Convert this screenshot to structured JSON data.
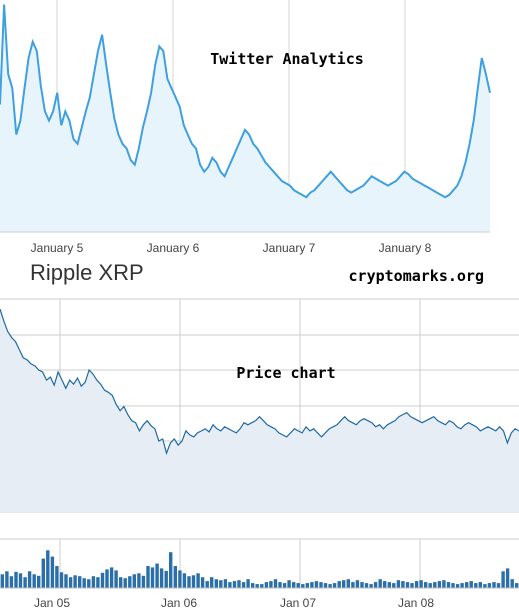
{
  "colors": {
    "twitter_line": "#3ea0e0",
    "twitter_fill": "#e8f4fc",
    "price_line": "#1f6aa5",
    "price_fill": "#e6edf4",
    "volume_bar": "#2a6fa8",
    "grid": "#cccccc",
    "text": "#333333"
  },
  "header": {
    "title": "Ripple XRP",
    "site": "cryptomarks.org"
  },
  "chart_data": [
    {
      "type": "area",
      "title": "Twitter Analytics",
      "x_tick_labels": [
        "January 5",
        "January 6",
        "January 7",
        "January 8"
      ],
      "series": [
        {
          "values": [
            55,
            98,
            68,
            62,
            42,
            48,
            62,
            75,
            82,
            78,
            63,
            52,
            48,
            52,
            60,
            46,
            52,
            48,
            40,
            38,
            45,
            52,
            58,
            68,
            78,
            85,
            72,
            60,
            49,
            42,
            38,
            36,
            31,
            29,
            36,
            45,
            52,
            60,
            72,
            80,
            78,
            66,
            62,
            58,
            54,
            46,
            42,
            38,
            36,
            29,
            26,
            28,
            32,
            30,
            26,
            24,
            28,
            32,
            36,
            40,
            44,
            42,
            38,
            36,
            33,
            30,
            28,
            26,
            24,
            22,
            21,
            20,
            18,
            17,
            16,
            15,
            17,
            18,
            20,
            22,
            24,
            26,
            24,
            22,
            20,
            18,
            17,
            18,
            19,
            20,
            22,
            24,
            23,
            22,
            21,
            20,
            21,
            22,
            24,
            26,
            25,
            23,
            22,
            21,
            20,
            19,
            18,
            17,
            16,
            15,
            16,
            18,
            20,
            24,
            30,
            38,
            48,
            62,
            75,
            68,
            60
          ]
        }
      ]
    },
    {
      "type": "line",
      "title": "Price chart",
      "x_tick_labels": [
        "Jan 05",
        "Jan 06",
        "Jan 07",
        "Jan 08"
      ],
      "series": [
        {
          "values": [
            2.4,
            2.28,
            2.18,
            2.12,
            2.08,
            2.0,
            1.92,
            1.9,
            1.86,
            1.84,
            1.8,
            1.78,
            1.7,
            1.73,
            1.65,
            1.78,
            1.7,
            1.62,
            1.7,
            1.66,
            1.72,
            1.64,
            1.68,
            1.8,
            1.76,
            1.7,
            1.66,
            1.6,
            1.58,
            1.55,
            1.46,
            1.4,
            1.44,
            1.36,
            1.3,
            1.28,
            1.2,
            1.26,
            1.3,
            1.25,
            1.22,
            1.1,
            1.12,
            0.98,
            1.08,
            1.12,
            1.06,
            1.1,
            1.2,
            1.16,
            1.14,
            1.18,
            1.2,
            1.22,
            1.19,
            1.26,
            1.22,
            1.2,
            1.24,
            1.22,
            1.2,
            1.18,
            1.22,
            1.28,
            1.26,
            1.28,
            1.3,
            1.34,
            1.3,
            1.26,
            1.24,
            1.22,
            1.18,
            1.16,
            1.14,
            1.18,
            1.22,
            1.2,
            1.18,
            1.24,
            1.2,
            1.22,
            1.18,
            1.14,
            1.18,
            1.22,
            1.24,
            1.26,
            1.3,
            1.34,
            1.3,
            1.28,
            1.26,
            1.3,
            1.32,
            1.3,
            1.28,
            1.24,
            1.26,
            1.22,
            1.26,
            1.28,
            1.3,
            1.34,
            1.36,
            1.38,
            1.34,
            1.32,
            1.3,
            1.28,
            1.3,
            1.32,
            1.34,
            1.3,
            1.28,
            1.26,
            1.3,
            1.28,
            1.24,
            1.22,
            1.26,
            1.28,
            1.26,
            1.24,
            1.2,
            1.22,
            1.24,
            1.22,
            1.2,
            1.24,
            1.2,
            1.08,
            1.18,
            1.22,
            1.2
          ]
        }
      ]
    },
    {
      "type": "bar",
      "title": "",
      "x_tick_labels": [
        "Jan 05",
        "Jan 06",
        "Jan 07",
        "Jan 08"
      ],
      "series": [
        {
          "values": [
            0.28,
            0.34,
            0.24,
            0.33,
            0.3,
            0.22,
            0.34,
            0.28,
            0.25,
            0.6,
            0.77,
            0.64,
            0.45,
            0.32,
            0.28,
            0.22,
            0.26,
            0.24,
            0.2,
            0.18,
            0.24,
            0.22,
            0.31,
            0.38,
            0.42,
            0.36,
            0.22,
            0.2,
            0.24,
            0.28,
            0.3,
            0.25,
            0.45,
            0.42,
            0.5,
            0.4,
            0.35,
            0.73,
            0.45,
            0.36,
            0.3,
            0.24,
            0.26,
            0.3,
            0.22,
            0.14,
            0.22,
            0.18,
            0.16,
            0.18,
            0.12,
            0.14,
            0.16,
            0.12,
            0.18,
            0.1,
            0.08,
            0.08,
            0.12,
            0.14,
            0.18,
            0.12,
            0.1,
            0.16,
            0.12,
            0.1,
            0.08,
            0.1,
            0.12,
            0.14,
            0.12,
            0.1,
            0.08,
            0.1,
            0.14,
            0.16,
            0.18,
            0.12,
            0.16,
            0.12,
            0.1,
            0.08,
            0.12,
            0.18,
            0.14,
            0.12,
            0.1,
            0.16,
            0.14,
            0.12,
            0.1,
            0.14,
            0.16,
            0.12,
            0.1,
            0.12,
            0.14,
            0.16,
            0.12,
            0.1,
            0.08,
            0.1,
            0.12,
            0.14,
            0.1,
            0.12,
            0.08,
            0.1,
            0.12,
            0.1,
            0.34,
            0.4,
            0.18,
            0.1
          ]
        }
      ]
    }
  ]
}
